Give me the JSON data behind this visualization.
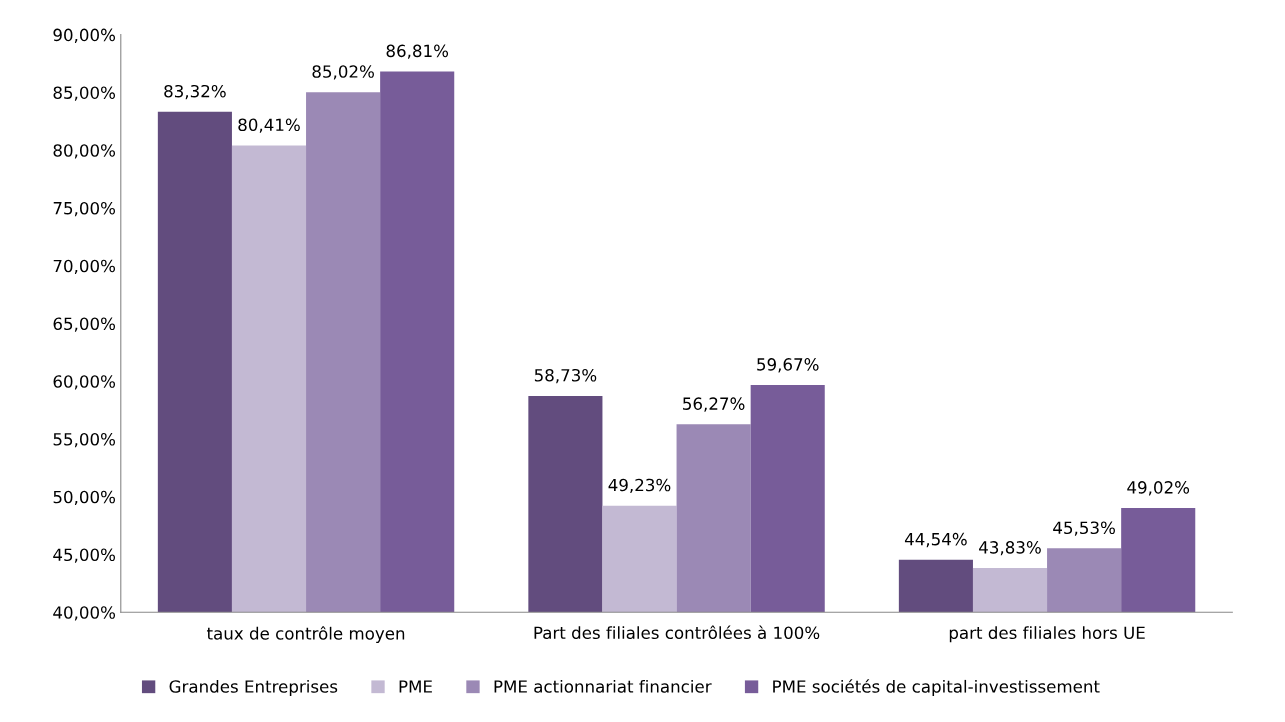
{
  "chart_data": {
    "type": "bar",
    "categories": [
      "taux de contrôle moyen",
      "Part des filiales contrôlées à 100%",
      "part des filiales hors UE"
    ],
    "series": [
      {
        "name": "Grandes Entreprises",
        "color": "#624c7e",
        "values": [
          83.32,
          58.73,
          44.54
        ],
        "value_labels": [
          "83,32%",
          "58,73%",
          "44,54%"
        ]
      },
      {
        "name": "PME",
        "color": "#c3b9d3",
        "values": [
          80.41,
          49.23,
          43.83
        ],
        "value_labels": [
          "80,41%",
          "49,23%",
          "43,83%"
        ]
      },
      {
        "name": "PME actionnariat financier",
        "color": "#9b89b5",
        "values": [
          85.02,
          56.27,
          45.53
        ],
        "value_labels": [
          "85,02%",
          "56,27%",
          "45,53%"
        ]
      },
      {
        "name": "PME sociétés de capital-investissement",
        "color": "#775c99",
        "values": [
          86.81,
          59.67,
          49.02
        ],
        "value_labels": [
          "86,81%",
          "59,67%",
          "49,02%"
        ]
      }
    ],
    "ylim": [
      40,
      90
    ],
    "yticks": [
      {
        "value": 40,
        "label": "40,00%"
      },
      {
        "value": 45,
        "label": "45,00%"
      },
      {
        "value": 50,
        "label": "50,00%"
      },
      {
        "value": 55,
        "label": "55,00%"
      },
      {
        "value": 60,
        "label": "60,00%"
      },
      {
        "value": 65,
        "label": "65,00%"
      },
      {
        "value": 70,
        "label": "70,00%"
      },
      {
        "value": 75,
        "label": "75,00%"
      },
      {
        "value": 80,
        "label": "80,00%"
      },
      {
        "value": 85,
        "label": "85,00%"
      },
      {
        "value": 90,
        "label": "90,00%"
      }
    ],
    "grid": false,
    "legend": "bottom"
  }
}
